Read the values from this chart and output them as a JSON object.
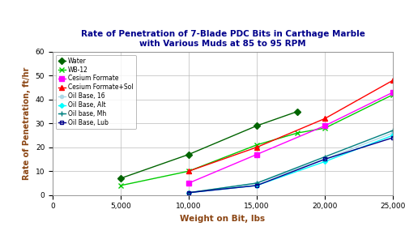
{
  "title_line1": "Rate of Penetration of 7-Blade PDC Bits in Carthage Marble",
  "title_line2": "with Various Muds at 85 to 95 RPM",
  "xlabel": "Weight on Bit, lbs",
  "ylabel": "Rate of Penetration, ft/hr",
  "xlim": [
    0,
    25000
  ],
  "ylim": [
    0,
    60
  ],
  "xticks": [
    0,
    5000,
    10000,
    15000,
    20000,
    25000
  ],
  "yticks": [
    0,
    10,
    20,
    30,
    40,
    50,
    60
  ],
  "series": [
    {
      "label": "Water",
      "color": "#006400",
      "marker": "D",
      "markersize": 4,
      "x": [
        5000,
        10000,
        15000,
        18000
      ],
      "y": [
        7,
        17,
        29,
        35
      ]
    },
    {
      "label": "WB-12",
      "color": "#00CC00",
      "marker": "x",
      "markersize": 5,
      "x": [
        5000,
        10000,
        15000,
        18000,
        20000,
        25000
      ],
      "y": [
        4,
        10,
        21,
        26,
        28,
        42
      ]
    },
    {
      "label": "Cesium Formate",
      "color": "#FF00FF",
      "marker": "s",
      "markersize": 4,
      "x": [
        10000,
        15000,
        20000,
        25000
      ],
      "y": [
        5,
        17,
        29,
        43
      ]
    },
    {
      "label": "Cesium Formate+Sol",
      "color": "#FF0000",
      "marker": "^",
      "markersize": 5,
      "x": [
        10000,
        15000,
        20000,
        25000
      ],
      "y": [
        10,
        20,
        32,
        48
      ]
    },
    {
      "label": "Oil Base, 16",
      "color": "#ADD8E6",
      "marker": "o",
      "markersize": 3,
      "x": [
        10000,
        15000,
        20000,
        25000
      ],
      "y": [
        1,
        5,
        15,
        26
      ]
    },
    {
      "label": "Oil Base, Alt",
      "color": "#00FFFF",
      "marker": "D",
      "markersize": 3,
      "x": [
        10000,
        15000,
        20000,
        25000
      ],
      "y": [
        1,
        4,
        14,
        25
      ]
    },
    {
      "label": "Oil base, Mh",
      "color": "#008080",
      "marker": "+",
      "markersize": 5,
      "x": [
        10000,
        15000,
        20000,
        25000
      ],
      "y": [
        1,
        5,
        16,
        27
      ]
    },
    {
      "label": "Oil Base, Lub",
      "color": "#00008B",
      "marker": "s",
      "markersize": 3,
      "markerfacecolor": "none",
      "x": [
        10000,
        15000,
        20000,
        25000
      ],
      "y": [
        1,
        4,
        15,
        24
      ]
    }
  ],
  "legend_loc": "upper left",
  "background_color": "#FFFFFF",
  "title_color": "#00008B",
  "axis_label_color": "#8B4513",
  "tick_label_color": "#000000",
  "grid_color": "#BBBBBB"
}
